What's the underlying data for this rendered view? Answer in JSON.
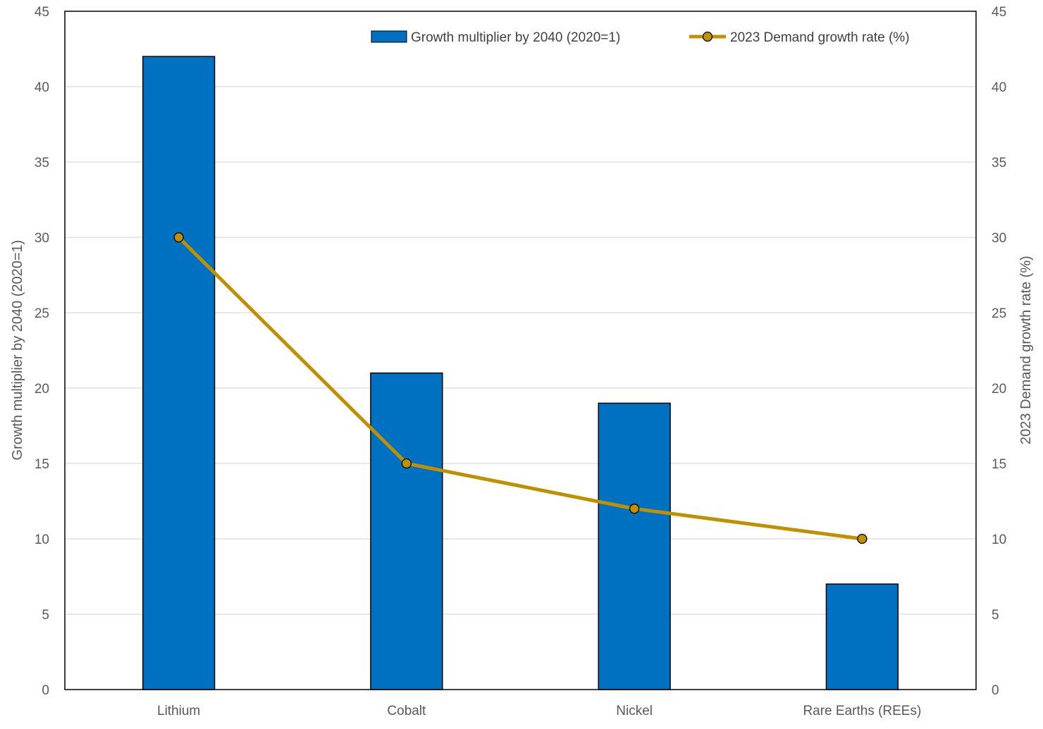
{
  "chart_data": {
    "type": "bar",
    "categories": [
      "Lithium",
      "Cobalt",
      "Nickel",
      "Rare Earths (REEs)"
    ],
    "series": [
      {
        "name": "Growth multiplier by 2040 (2020=1)",
        "type": "bar",
        "axis": "left",
        "color": "#0070C0",
        "values": [
          42,
          21,
          19,
          7
        ]
      },
      {
        "name": "2023 Demand growth rate (%)",
        "type": "line",
        "axis": "right",
        "color": "#BF9000",
        "marker_color": "#BF9000",
        "values": [
          30,
          15,
          12,
          10
        ]
      }
    ],
    "ylabel_left": "Growth multiplier by 2040 (2020=1)",
    "ylabel_right": "2023 Demand growth rate (%)",
    "ylim": [
      0,
      45
    ],
    "yticks": [
      0,
      5,
      10,
      15,
      20,
      25,
      30,
      35,
      40,
      45
    ],
    "grid": true,
    "legend_position": "top-right"
  }
}
